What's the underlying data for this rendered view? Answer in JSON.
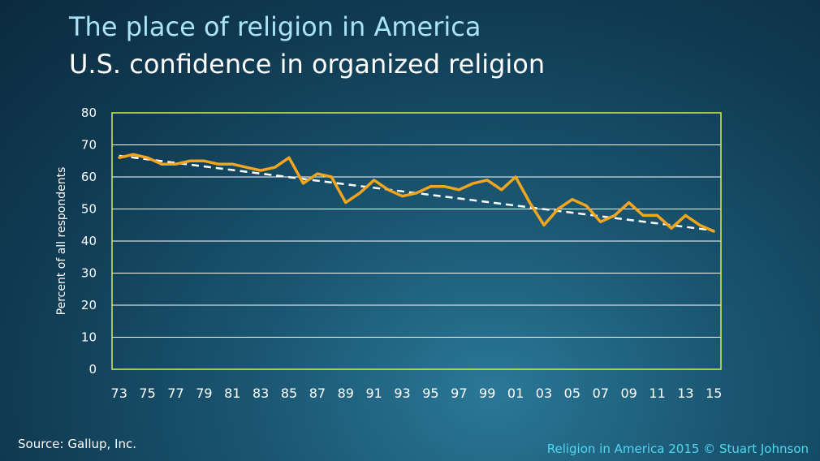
{
  "title": "The place of religion in America",
  "subtitle": "U.S. confidence in organized religion",
  "source": "Source: Gallup, Inc.",
  "credit": "Religion in America 2015 © Stuart Johnson",
  "colors": {
    "series": "#f2a51f",
    "trend": "#ffffff",
    "plot_border": "#d8ee50",
    "grid": "#ffffff"
  },
  "chart_data": {
    "type": "line",
    "title": "U.S. confidence in organized religion",
    "ylabel": "Percent of all respondents",
    "xlabel": "",
    "ylim": [
      0,
      80
    ],
    "y_ticks": [
      "0",
      "10",
      "20",
      "30",
      "40",
      "50",
      "60",
      "70",
      "80"
    ],
    "x_ticks": [
      "73",
      "75",
      "77",
      "79",
      "81",
      "83",
      "85",
      "87",
      "89",
      "91",
      "93",
      "95",
      "97",
      "99",
      "01",
      "03",
      "05",
      "07",
      "09",
      "11",
      "13",
      "15"
    ],
    "grid": true,
    "x": [
      1973,
      1974,
      1975,
      1976,
      1977,
      1978,
      1979,
      1980,
      1981,
      1982,
      1983,
      1984,
      1985,
      1986,
      1987,
      1988,
      1989,
      1990,
      1991,
      1992,
      1993,
      1994,
      1995,
      1996,
      1997,
      1998,
      1999,
      2000,
      2001,
      2002,
      2003,
      2004,
      2005,
      2006,
      2007,
      2008,
      2009,
      2010,
      2011,
      2012,
      2013,
      2014,
      2015
    ],
    "series": [
      {
        "values": [
          66,
          67,
          66,
          64,
          64,
          65,
          65,
          64,
          64,
          63,
          62,
          63,
          66,
          58,
          61,
          60,
          52,
          55,
          59,
          56,
          54,
          55,
          57,
          57,
          56,
          58,
          59,
          56,
          60,
          52,
          45,
          50,
          53,
          51,
          46,
          48,
          52,
          48,
          48,
          44,
          48,
          45,
          43
        ]
      }
    ],
    "trendline": {
      "style": "dashed",
      "start": [
        1973,
        66.6
      ],
      "end": [
        2015,
        43.3
      ]
    }
  }
}
